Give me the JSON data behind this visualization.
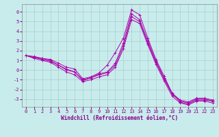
{
  "xlabel": "Windchill (Refroidissement éolien,°C)",
  "ylabel": "",
  "background_color": "#c8ecec",
  "line_color": "#aa00aa",
  "grid_color": "#aacccc",
  "axis_color": "#880088",
  "spine_color": "#888888",
  "xlim": [
    -0.5,
    23.5
  ],
  "ylim": [
    -3.8,
    6.8
  ],
  "yticks": [
    -3,
    -2,
    -1,
    0,
    1,
    2,
    3,
    4,
    5,
    6
  ],
  "xticks": [
    0,
    1,
    2,
    3,
    4,
    5,
    6,
    7,
    8,
    9,
    10,
    11,
    12,
    13,
    14,
    15,
    16,
    17,
    18,
    19,
    20,
    21,
    22,
    23
  ],
  "series": [
    [
      1.5,
      1.4,
      1.2,
      1.1,
      0.7,
      0.3,
      0.1,
      -0.9,
      -0.7,
      -0.3,
      0.5,
      1.8,
      3.3,
      6.2,
      5.7,
      3.3,
      1.1,
      -0.6,
      -2.4,
      -3.3,
      -3.5,
      -3.1,
      -3.1,
      -3.2
    ],
    [
      1.5,
      1.3,
      1.1,
      0.9,
      0.5,
      0.1,
      -0.2,
      -1.1,
      -0.8,
      -0.5,
      -0.3,
      0.5,
      2.5,
      5.5,
      5.0,
      2.8,
      0.8,
      -0.9,
      -2.5,
      -3.2,
      -3.4,
      -3.0,
      -3.0,
      -3.2
    ],
    [
      1.5,
      1.3,
      1.2,
      1.0,
      0.5,
      0.0,
      -0.2,
      -1.0,
      -0.8,
      -0.4,
      -0.2,
      0.7,
      2.8,
      5.8,
      5.2,
      3.0,
      0.9,
      -0.8,
      -2.4,
      -3.1,
      -3.3,
      -2.9,
      -2.9,
      -3.1
    ],
    [
      1.5,
      1.2,
      1.0,
      0.8,
      0.3,
      -0.2,
      -0.5,
      -1.2,
      -1.0,
      -0.7,
      -0.5,
      0.3,
      2.2,
      5.2,
      4.8,
      2.6,
      0.6,
      -1.1,
      -2.7,
      -3.4,
      -3.6,
      -3.2,
      -3.2,
      -3.4
    ]
  ],
  "tick_fontsize": 5.0,
  "xlabel_fontsize": 5.5,
  "linewidth": 0.7,
  "markersize": 2.5
}
